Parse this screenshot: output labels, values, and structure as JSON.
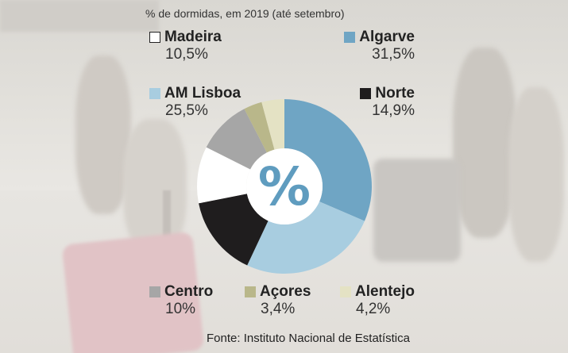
{
  "chart_data": {
    "type": "pie",
    "style": "donut",
    "title": "% de dormidas, em 2019 (até setembro)",
    "center_label": "%",
    "slices": [
      {
        "label": "Algarve",
        "value": 31.5,
        "display": "31,5%",
        "color": "#6fa5c4"
      },
      {
        "label": "AM Lisboa",
        "value": 25.5,
        "display": "25,5%",
        "color": "#a8cde0"
      },
      {
        "label": "Norte",
        "value": 14.9,
        "display": "14,9%",
        "color": "#1f1d1e"
      },
      {
        "label": "Madeira",
        "value": 10.5,
        "display": "10,5%",
        "color": "#ffffff"
      },
      {
        "label": "Centro",
        "value": 10.0,
        "display": "10%",
        "color": "#a6a6a6"
      },
      {
        "label": "Açores",
        "value": 3.4,
        "display": "3,4%",
        "color": "#b9b78a"
      },
      {
        "label": "Alentejo",
        "value": 4.2,
        "display": "4,2%",
        "color": "#e4e2c4"
      }
    ],
    "source": "Fonte: Instituto Nacional de Estatística"
  }
}
